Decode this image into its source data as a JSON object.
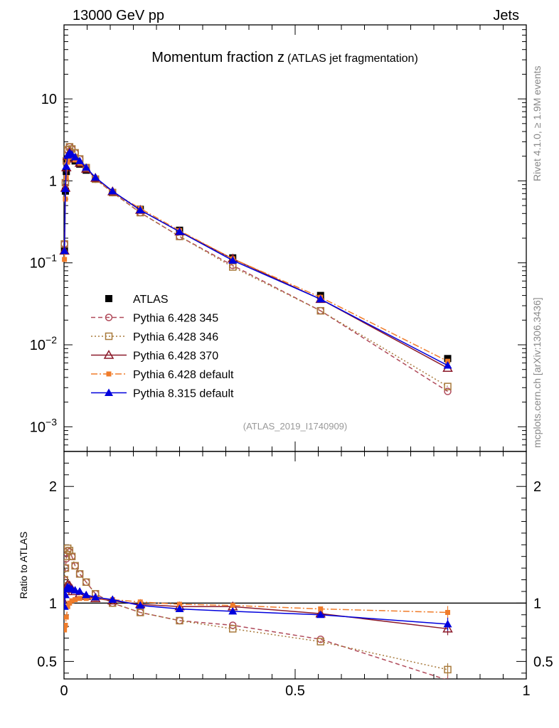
{
  "header": {
    "left": "13000 GeV pp",
    "right": "Jets"
  },
  "side_labels": {
    "rivet": "Rivet 4.1.0, ≥ 1.9M events",
    "mcplots": "mcplots.cern.ch [arXiv:1306.3436]"
  },
  "chart_data": [
    {
      "type": "line",
      "panel": "main",
      "title": "Momentum fraction z",
      "title_suffix": "(ATLAS jet fragmentation)",
      "analysis_tag": "(ATLAS_2019_I1740909)",
      "yscale": "log",
      "ylim": [
        0.0005,
        80
      ],
      "xlim": [
        0,
        1
      ],
      "ytick_labels": {
        "10": "10",
        "1": "1",
        "0.1": "10^-1",
        "0.01": "10^-2",
        "0.001": "10^-3"
      },
      "legend": [
        {
          "name": "ATLAS",
          "color": "#000000",
          "marker": "square-filled",
          "line": "none"
        },
        {
          "name": "Pythia 6.428 345",
          "color": "#b04a5a",
          "marker": "circle-open",
          "line": "dashed"
        },
        {
          "name": "Pythia 6.428 346",
          "color": "#a87a3c",
          "marker": "square-open",
          "line": "dotted"
        },
        {
          "name": "Pythia 6.428 370",
          "color": "#8b1a2a",
          "marker": "triangle-open",
          "line": "solid"
        },
        {
          "name": "Pythia 6.428 default",
          "color": "#f07c2a",
          "marker": "square-filled-small",
          "line": "dashdot"
        },
        {
          "name": "Pythia 8.315 default",
          "color": "#0000dd",
          "marker": "triangle-filled",
          "line": "solid"
        }
      ],
      "x": [
        0.001,
        0.003,
        0.005,
        0.008,
        0.012,
        0.017,
        0.024,
        0.034,
        0.048,
        0.068,
        0.105,
        0.165,
        0.25,
        0.365,
        0.555,
        0.83
      ],
      "series": [
        {
          "name": "ATLAS",
          "values": [
            0.14,
            0.75,
            1.3,
            1.85,
            2.0,
            1.9,
            1.75,
            1.6,
            1.35,
            1.05,
            0.72,
            0.45,
            0.25,
            0.115,
            0.04,
            0.0068
          ]
        },
        {
          "name": "Pythia 6.428 345",
          "values": [
            0.17,
            0.95,
            1.75,
            2.4,
            2.6,
            2.45,
            2.2,
            1.85,
            1.45,
            1.05,
            0.72,
            0.41,
            0.21,
            0.093,
            0.026,
            0.0027
          ]
        },
        {
          "name": "Pythia 6.428 346",
          "values": [
            0.17,
            0.95,
            1.75,
            2.4,
            2.6,
            2.45,
            2.2,
            1.85,
            1.45,
            1.05,
            0.72,
            0.41,
            0.21,
            0.089,
            0.026,
            0.0031
          ]
        },
        {
          "name": "Pythia 6.428 370",
          "values": [
            0.14,
            0.82,
            1.45,
            2.0,
            2.2,
            2.05,
            1.87,
            1.65,
            1.4,
            1.08,
            0.74,
            0.44,
            0.24,
            0.112,
            0.036,
            0.0052
          ]
        },
        {
          "name": "Pythia 6.428 default",
          "values": [
            0.11,
            0.6,
            1.1,
            1.7,
            1.95,
            1.95,
            1.8,
            1.65,
            1.4,
            1.08,
            0.73,
            0.46,
            0.247,
            0.112,
            0.038,
            0.0063
          ]
        },
        {
          "name": "Pythia 8.315 default",
          "values": [
            0.14,
            0.8,
            1.5,
            2.05,
            2.2,
            2.1,
            1.95,
            1.75,
            1.45,
            1.1,
            0.75,
            0.44,
            0.24,
            0.107,
            0.036,
            0.0056
          ]
        }
      ]
    },
    {
      "type": "line",
      "panel": "ratio",
      "ylabel": "Ratio to ATLAS",
      "xlabel": "",
      "xlim": [
        0,
        1
      ],
      "ylim": [
        0.35,
        2.3
      ],
      "yticks": [
        0.5,
        1,
        2
      ],
      "ytick_labels": [
        "0.5",
        "1",
        "2"
      ],
      "xticks": [
        0,
        0.5,
        1
      ],
      "xtick_labels": [
        "0",
        "0.5",
        "1"
      ],
      "x": [
        0.001,
        0.003,
        0.005,
        0.008,
        0.012,
        0.017,
        0.024,
        0.034,
        0.048,
        0.068,
        0.105,
        0.165,
        0.25,
        0.365,
        0.555,
        0.83
      ],
      "series": [
        {
          "name": "Pythia 6.428 345",
          "values": [
            1.2,
            1.3,
            1.38,
            1.45,
            1.44,
            1.4,
            1.32,
            1.25,
            1.18,
            1.08,
            1.0,
            0.92,
            0.85,
            0.81,
            0.69,
            0.34
          ]
        },
        {
          "name": "Pythia 6.428 346",
          "values": [
            1.2,
            1.3,
            1.4,
            1.47,
            1.45,
            1.4,
            1.32,
            1.25,
            1.18,
            1.08,
            1.0,
            0.92,
            0.85,
            0.78,
            0.67,
            0.43
          ]
        },
        {
          "name": "Pythia 6.428 370",
          "values": [
            1.0,
            1.1,
            1.13,
            1.16,
            1.15,
            1.12,
            1.1,
            1.08,
            1.06,
            1.04,
            1.02,
            0.99,
            0.97,
            0.97,
            0.91,
            0.78
          ]
        },
        {
          "name": "Pythia 6.428 default",
          "values": [
            0.77,
            0.81,
            0.88,
            0.97,
            1.0,
            1.02,
            1.03,
            1.04,
            1.04,
            1.04,
            1.03,
            1.01,
            0.99,
            0.98,
            0.95,
            0.92
          ]
        },
        {
          "name": "Pythia 8.315 default",
          "values": [
            0.97,
            1.07,
            1.12,
            1.14,
            1.13,
            1.12,
            1.11,
            1.1,
            1.07,
            1.05,
            1.03,
            0.98,
            0.95,
            0.93,
            0.9,
            0.82
          ]
        }
      ]
    }
  ]
}
